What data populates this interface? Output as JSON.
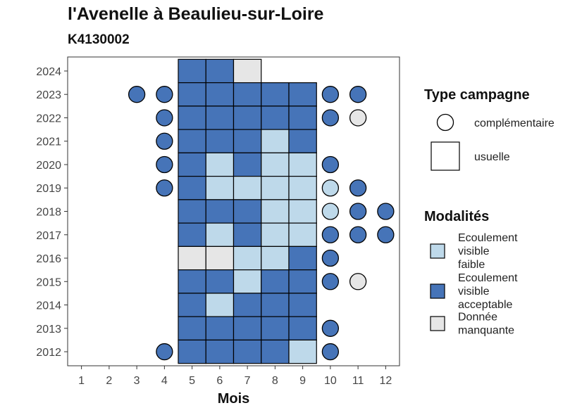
{
  "chart_data": {
    "type": "heatmap",
    "title": "l'Avenelle à Beaulieu-sur-Loire",
    "subtitle": "K4130002",
    "xlabel": "Mois",
    "ylabel": "",
    "x_ticks": [
      1,
      2,
      3,
      4,
      5,
      6,
      7,
      8,
      9,
      10,
      11,
      12
    ],
    "y_ticks": [
      2012,
      2013,
      2014,
      2015,
      2016,
      2017,
      2018,
      2019,
      2020,
      2021,
      2022,
      2023,
      2024
    ],
    "xlim": [
      0.5,
      12.5
    ],
    "ylim": [
      2011.4,
      2024.6
    ],
    "grid": false,
    "legend_placement": "right",
    "legend_shape": {
      "title": "Type campagne",
      "entries": [
        {
          "key": "complementaire",
          "label": "complémentaire",
          "shape": "circle"
        },
        {
          "key": "usuelle",
          "label": "usuelle",
          "shape": "square"
        }
      ]
    },
    "legend_color": {
      "title": "Modalités",
      "entries": [
        {
          "key": "faible",
          "label_lines": [
            "Ecoulement",
            "visible",
            "faible"
          ],
          "color": "#bed9ea"
        },
        {
          "key": "acceptable",
          "label_lines": [
            "Ecoulement",
            "visible",
            "acceptable"
          ],
          "color": "#4674b8"
        },
        {
          "key": "manquante",
          "label_lines": [
            "Donnée",
            "manquante"
          ],
          "color": "#e6e6e6"
        }
      ]
    },
    "points": [
      {
        "year": 2024,
        "month": 5,
        "type": "usuelle",
        "status": "acceptable"
      },
      {
        "year": 2024,
        "month": 6,
        "type": "usuelle",
        "status": "acceptable"
      },
      {
        "year": 2024,
        "month": 7,
        "type": "usuelle",
        "status": "manquante"
      },
      {
        "year": 2023,
        "month": 3,
        "type": "complementaire",
        "status": "acceptable"
      },
      {
        "year": 2023,
        "month": 4,
        "type": "complementaire",
        "status": "acceptable"
      },
      {
        "year": 2023,
        "month": 5,
        "type": "usuelle",
        "status": "acceptable"
      },
      {
        "year": 2023,
        "month": 6,
        "type": "usuelle",
        "status": "acceptable"
      },
      {
        "year": 2023,
        "month": 7,
        "type": "usuelle",
        "status": "acceptable"
      },
      {
        "year": 2023,
        "month": 8,
        "type": "usuelle",
        "status": "acceptable"
      },
      {
        "year": 2023,
        "month": 9,
        "type": "usuelle",
        "status": "acceptable"
      },
      {
        "year": 2023,
        "month": 10,
        "type": "complementaire",
        "status": "acceptable"
      },
      {
        "year": 2023,
        "month": 11,
        "type": "complementaire",
        "status": "acceptable"
      },
      {
        "year": 2022,
        "month": 4,
        "type": "complementaire",
        "status": "acceptable"
      },
      {
        "year": 2022,
        "month": 5,
        "type": "usuelle",
        "status": "acceptable"
      },
      {
        "year": 2022,
        "month": 6,
        "type": "usuelle",
        "status": "acceptable"
      },
      {
        "year": 2022,
        "month": 7,
        "type": "usuelle",
        "status": "acceptable"
      },
      {
        "year": 2022,
        "month": 8,
        "type": "usuelle",
        "status": "acceptable"
      },
      {
        "year": 2022,
        "month": 9,
        "type": "usuelle",
        "status": "acceptable"
      },
      {
        "year": 2022,
        "month": 10,
        "type": "complementaire",
        "status": "acceptable"
      },
      {
        "year": 2022,
        "month": 11,
        "type": "complementaire",
        "status": "manquante"
      },
      {
        "year": 2021,
        "month": 4,
        "type": "complementaire",
        "status": "acceptable"
      },
      {
        "year": 2021,
        "month": 5,
        "type": "usuelle",
        "status": "acceptable"
      },
      {
        "year": 2021,
        "month": 6,
        "type": "usuelle",
        "status": "acceptable"
      },
      {
        "year": 2021,
        "month": 7,
        "type": "usuelle",
        "status": "acceptable"
      },
      {
        "year": 2021,
        "month": 8,
        "type": "usuelle",
        "status": "faible"
      },
      {
        "year": 2021,
        "month": 9,
        "type": "usuelle",
        "status": "acceptable"
      },
      {
        "year": 2020,
        "month": 4,
        "type": "complementaire",
        "status": "acceptable"
      },
      {
        "year": 2020,
        "month": 5,
        "type": "usuelle",
        "status": "acceptable"
      },
      {
        "year": 2020,
        "month": 6,
        "type": "usuelle",
        "status": "faible"
      },
      {
        "year": 2020,
        "month": 7,
        "type": "usuelle",
        "status": "acceptable"
      },
      {
        "year": 2020,
        "month": 8,
        "type": "usuelle",
        "status": "faible"
      },
      {
        "year": 2020,
        "month": 9,
        "type": "usuelle",
        "status": "faible"
      },
      {
        "year": 2020,
        "month": 10,
        "type": "complementaire",
        "status": "acceptable"
      },
      {
        "year": 2019,
        "month": 4,
        "type": "complementaire",
        "status": "acceptable"
      },
      {
        "year": 2019,
        "month": 5,
        "type": "usuelle",
        "status": "acceptable"
      },
      {
        "year": 2019,
        "month": 6,
        "type": "usuelle",
        "status": "faible"
      },
      {
        "year": 2019,
        "month": 7,
        "type": "usuelle",
        "status": "faible"
      },
      {
        "year": 2019,
        "month": 8,
        "type": "usuelle",
        "status": "faible"
      },
      {
        "year": 2019,
        "month": 9,
        "type": "usuelle",
        "status": "faible"
      },
      {
        "year": 2019,
        "month": 10,
        "type": "complementaire",
        "status": "faible"
      },
      {
        "year": 2019,
        "month": 11,
        "type": "complementaire",
        "status": "acceptable"
      },
      {
        "year": 2018,
        "month": 5,
        "type": "usuelle",
        "status": "acceptable"
      },
      {
        "year": 2018,
        "month": 6,
        "type": "usuelle",
        "status": "acceptable"
      },
      {
        "year": 2018,
        "month": 7,
        "type": "usuelle",
        "status": "acceptable"
      },
      {
        "year": 2018,
        "month": 8,
        "type": "usuelle",
        "status": "faible"
      },
      {
        "year": 2018,
        "month": 9,
        "type": "usuelle",
        "status": "faible"
      },
      {
        "year": 2018,
        "month": 10,
        "type": "complementaire",
        "status": "faible"
      },
      {
        "year": 2018,
        "month": 11,
        "type": "complementaire",
        "status": "acceptable"
      },
      {
        "year": 2018,
        "month": 12,
        "type": "complementaire",
        "status": "acceptable"
      },
      {
        "year": 2017,
        "month": 5,
        "type": "usuelle",
        "status": "acceptable"
      },
      {
        "year": 2017,
        "month": 6,
        "type": "usuelle",
        "status": "faible"
      },
      {
        "year": 2017,
        "month": 7,
        "type": "usuelle",
        "status": "acceptable"
      },
      {
        "year": 2017,
        "month": 8,
        "type": "usuelle",
        "status": "faible"
      },
      {
        "year": 2017,
        "month": 9,
        "type": "usuelle",
        "status": "faible"
      },
      {
        "year": 2017,
        "month": 10,
        "type": "complementaire",
        "status": "acceptable"
      },
      {
        "year": 2017,
        "month": 11,
        "type": "complementaire",
        "status": "acceptable"
      },
      {
        "year": 2017,
        "month": 12,
        "type": "complementaire",
        "status": "acceptable"
      },
      {
        "year": 2016,
        "month": 5,
        "type": "usuelle",
        "status": "manquante"
      },
      {
        "year": 2016,
        "month": 6,
        "type": "usuelle",
        "status": "manquante"
      },
      {
        "year": 2016,
        "month": 7,
        "type": "usuelle",
        "status": "faible"
      },
      {
        "year": 2016,
        "month": 8,
        "type": "usuelle",
        "status": "faible"
      },
      {
        "year": 2016,
        "month": 9,
        "type": "usuelle",
        "status": "acceptable"
      },
      {
        "year": 2016,
        "month": 10,
        "type": "complementaire",
        "status": "acceptable"
      },
      {
        "year": 2015,
        "month": 5,
        "type": "usuelle",
        "status": "acceptable"
      },
      {
        "year": 2015,
        "month": 6,
        "type": "usuelle",
        "status": "acceptable"
      },
      {
        "year": 2015,
        "month": 7,
        "type": "usuelle",
        "status": "faible"
      },
      {
        "year": 2015,
        "month": 8,
        "type": "usuelle",
        "status": "acceptable"
      },
      {
        "year": 2015,
        "month": 9,
        "type": "usuelle",
        "status": "acceptable"
      },
      {
        "year": 2015,
        "month": 10,
        "type": "complementaire",
        "status": "acceptable"
      },
      {
        "year": 2015,
        "month": 11,
        "type": "complementaire",
        "status": "manquante"
      },
      {
        "year": 2014,
        "month": 5,
        "type": "usuelle",
        "status": "acceptable"
      },
      {
        "year": 2014,
        "month": 6,
        "type": "usuelle",
        "status": "faible"
      },
      {
        "year": 2014,
        "month": 7,
        "type": "usuelle",
        "status": "acceptable"
      },
      {
        "year": 2014,
        "month": 8,
        "type": "usuelle",
        "status": "acceptable"
      },
      {
        "year": 2014,
        "month": 9,
        "type": "usuelle",
        "status": "acceptable"
      },
      {
        "year": 2013,
        "month": 5,
        "type": "usuelle",
        "status": "acceptable"
      },
      {
        "year": 2013,
        "month": 6,
        "type": "usuelle",
        "status": "acceptable"
      },
      {
        "year": 2013,
        "month": 7,
        "type": "usuelle",
        "status": "acceptable"
      },
      {
        "year": 2013,
        "month": 8,
        "type": "usuelle",
        "status": "acceptable"
      },
      {
        "year": 2013,
        "month": 9,
        "type": "usuelle",
        "status": "acceptable"
      },
      {
        "year": 2013,
        "month": 10,
        "type": "complementaire",
        "status": "acceptable"
      },
      {
        "year": 2012,
        "month": 4,
        "type": "complementaire",
        "status": "acceptable"
      },
      {
        "year": 2012,
        "month": 5,
        "type": "usuelle",
        "status": "acceptable"
      },
      {
        "year": 2012,
        "month": 6,
        "type": "usuelle",
        "status": "acceptable"
      },
      {
        "year": 2012,
        "month": 7,
        "type": "usuelle",
        "status": "acceptable"
      },
      {
        "year": 2012,
        "month": 8,
        "type": "usuelle",
        "status": "acceptable"
      },
      {
        "year": 2012,
        "month": 9,
        "type": "usuelle",
        "status": "faible"
      },
      {
        "year": 2012,
        "month": 10,
        "type": "complementaire",
        "status": "acceptable"
      }
    ]
  }
}
